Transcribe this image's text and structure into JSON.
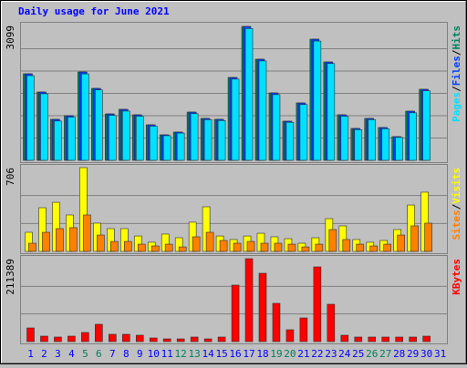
{
  "chart_data": [
    {
      "type": "bar",
      "title": "Daily usage for June 2021",
      "series": [
        {
          "name": "Hits",
          "color": "#00805c",
          "values": [
            2003,
            1581,
            949,
            1033,
            2045,
            1665,
            1075,
            1180,
            1054,
            822,
            590,
            654,
            1117,
            970,
            949,
            1918,
            3099,
            2340,
            1560,
            906,
            1328,
            2804,
            2277,
            1054,
            738,
            970,
            759,
            548,
            1138,
            1644,
            null
          ]
        },
        {
          "name": "Files",
          "color": "#0040ff",
          "values": [
            2003,
            1581,
            949,
            1033,
            2045,
            1665,
            1075,
            1180,
            1054,
            822,
            590,
            654,
            1117,
            970,
            949,
            1918,
            3099,
            2340,
            1560,
            906,
            1328,
            2804,
            2277,
            1054,
            738,
            970,
            759,
            548,
            1138,
            1644,
            null
          ]
        },
        {
          "name": "Pages",
          "color": "#00e0ff",
          "values": [
            1960,
            1540,
            910,
            1000,
            2000,
            1630,
            1040,
            1140,
            1020,
            790,
            570,
            630,
            1080,
            940,
            920,
            1880,
            3050,
            2300,
            1520,
            880,
            1290,
            2760,
            2240,
            1020,
            710,
            940,
            730,
            530,
            1100,
            1610,
            null
          ]
        }
      ],
      "legend_separator": "/",
      "ylim": [
        0,
        3099
      ],
      "yticks": [
        3099
      ]
    },
    {
      "type": "bar",
      "series": [
        {
          "name": "Visits",
          "color": "#ffff00",
          "values": [
            161,
            368,
            414,
            307,
            706,
            238,
            192,
            192,
            130,
            77,
            146,
            115,
            246,
            376,
            130,
            100,
            130,
            153,
            123,
            107,
            69,
            115,
            276,
            215,
            100,
            77,
            92,
            184,
            391,
            499,
            null
          ]
        },
        {
          "name": "Sites",
          "color": "#ff8000",
          "values": [
            69,
            161,
            192,
            200,
            307,
            138,
            84,
            84,
            61,
            46,
            61,
            38,
            123,
            161,
            92,
            69,
            84,
            69,
            69,
            61,
            38,
            61,
            184,
            100,
            61,
            46,
            61,
            138,
            215,
            238,
            null
          ]
        }
      ],
      "legend_separator": "/",
      "ylim": [
        0,
        706
      ],
      "yticks": [
        706
      ]
    },
    {
      "type": "bar",
      "categories": [
        "1",
        "2",
        "3",
        "4",
        "5",
        "6",
        "7",
        "8",
        "9",
        "10",
        "11",
        "12",
        "13",
        "14",
        "15",
        "16",
        "17",
        "18",
        "19",
        "20",
        "21",
        "22",
        "23",
        "24",
        "25",
        "26",
        "27",
        "28",
        "29",
        "30",
        "31"
      ],
      "category_colors": [
        "#0000ff",
        "#0000ff",
        "#0000ff",
        "#0000ff",
        "#00805c",
        "#00805c",
        "#0000ff",
        "#0000ff",
        "#0000ff",
        "#0000ff",
        "#0000ff",
        "#00805c",
        "#00805c",
        "#0000ff",
        "#0000ff",
        "#0000ff",
        "#0000ff",
        "#0000ff",
        "#00805c",
        "#00805c",
        "#0000ff",
        "#0000ff",
        "#0000ff",
        "#0000ff",
        "#0000ff",
        "#00805c",
        "#00805c",
        "#0000ff",
        "#0000ff",
        "#0000ff",
        "#0000ff"
      ],
      "series": [
        {
          "name": "KBytes",
          "color": "#ff0000",
          "values": [
            34845,
            13938,
            11615,
            13938,
            23230,
            44137,
            18584,
            18584,
            16261,
            9292,
            6969,
            6969,
            11615,
            6969,
            11615,
            144026,
            211389,
            174225,
            97566,
            30199,
            60398,
            190486,
            95243,
            16261,
            11615,
            11615,
            11615,
            11615,
            11615,
            13938,
            null
          ]
        }
      ],
      "ylim": [
        0,
        211389
      ],
      "yticks": [
        211389
      ]
    }
  ]
}
